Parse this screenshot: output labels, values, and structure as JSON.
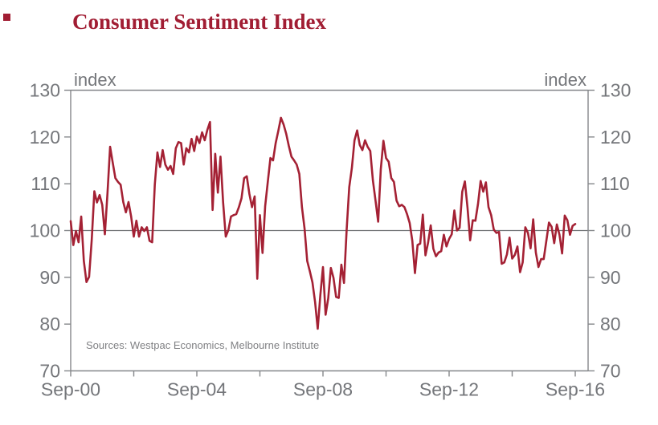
{
  "title": "Consumer Sentiment Index",
  "axis_unit_label": "index",
  "source_note": "Sources: Westpac Economics, Melbourne Institute",
  "colors": {
    "title_red": "#A11D33",
    "line_red": "#A42134",
    "axis_gray": "#85878A",
    "reference_gray": "#6F7174",
    "tick_label_gray": "#74767A",
    "source_gray": "#808184",
    "background": "#FFFFFF"
  },
  "chart_data": {
    "type": "line",
    "title": "Consumer Sentiment Index",
    "xlabel": "",
    "ylabel": "index",
    "frequency": "monthly",
    "x_start": "Sep-00",
    "x_end": "Sep-16",
    "x_tick_labels": [
      "Sep-00",
      "Sep-04",
      "Sep-08",
      "Sep-12",
      "Sep-16"
    ],
    "minor_x_ticks_every_years": 2,
    "y_ticks": [
      70,
      80,
      90,
      100,
      110,
      120,
      130
    ],
    "ylim": [
      70,
      130
    ],
    "reference_line": 100,
    "grid": false,
    "legend": "none",
    "dual_y_axis": true,
    "series": [
      {
        "name": "Consumer Sentiment Index",
        "values": [
          102.0,
          96.9,
          99.9,
          97.5,
          103.0,
          93.5,
          89.0,
          90.1,
          98.0,
          108.4,
          106.0,
          107.6,
          105.5,
          99.2,
          108.0,
          117.9,
          114.5,
          111.2,
          110.4,
          109.8,
          106.1,
          103.9,
          106.1,
          103.0,
          98.7,
          102.1,
          98.7,
          100.7,
          99.9,
          100.7,
          97.8,
          97.5,
          109.8,
          116.7,
          113.6,
          117.2,
          114.1,
          113.0,
          113.8,
          112.1,
          117.6,
          118.9,
          118.7,
          114.1,
          117.6,
          116.7,
          119.6,
          117.0,
          120.1,
          118.7,
          121.0,
          119.3,
          121.5,
          123.2,
          104.4,
          116.4,
          108.1,
          115.8,
          106.0,
          98.7,
          100.1,
          103.0,
          103.3,
          103.5,
          105.0,
          106.9,
          111.2,
          111.6,
          107.8,
          105.0,
          107.3,
          89.7,
          103.3,
          95.2,
          105.2,
          110.4,
          115.5,
          115.0,
          118.7,
          121.3,
          124.1,
          122.7,
          120.7,
          118.1,
          115.8,
          115.0,
          114.1,
          112.1,
          105.0,
          100.4,
          93.5,
          91.3,
          88.9,
          84.7,
          79.0,
          86.2,
          92.2,
          82.0,
          85.5,
          92.0,
          89.9,
          85.8,
          85.6,
          92.7,
          88.8,
          100.1,
          109.3,
          113.4,
          119.3,
          121.4,
          118.3,
          117.2,
          119.3,
          117.9,
          117.0,
          110.7,
          106.4,
          101.9,
          113.1,
          119.2,
          115.5,
          114.7,
          111.2,
          110.4,
          106.4,
          105.2,
          105.5,
          105.0,
          103.5,
          101.6,
          97.8,
          90.9,
          96.9,
          97.2,
          103.4,
          94.7,
          97.4,
          101.1,
          96.1,
          94.5,
          95.3,
          95.6,
          99.1,
          96.6,
          98.2,
          99.2,
          104.3,
          100.0,
          100.6,
          108.3,
          110.5,
          104.9,
          97.9,
          102.2,
          102.1,
          105.7,
          110.6,
          108.3,
          110.3,
          105.0,
          103.3,
          100.2,
          99.5,
          99.7,
          92.9,
          93.2,
          94.9,
          98.5,
          94.0,
          94.8,
          96.6,
          91.1,
          93.2,
          100.7,
          99.5,
          96.2,
          102.4,
          95.3,
          92.2,
          93.9,
          93.9,
          97.8,
          101.7,
          100.8,
          97.3,
          101.3,
          99.1,
          95.1,
          103.2,
          102.2,
          99.1,
          101.0,
          101.4
        ]
      }
    ]
  }
}
